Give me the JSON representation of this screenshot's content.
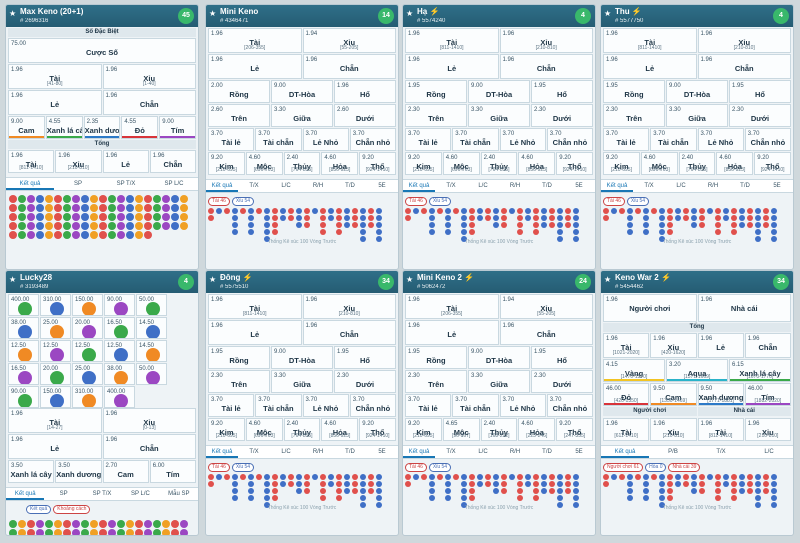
{
  "common": {
    "tabs": [
      "Kết quả",
      "T/X",
      "L/C",
      "R/H",
      "T/D",
      "5E"
    ],
    "footer": "Thống Kê xúc 100 Vòng Trước",
    "chip_tai": "Tài 46",
    "chip_xiu": "Xỉu 54"
  },
  "panels": [
    {
      "title": "Max Keno (20+1)",
      "bolt": false,
      "id": "# 2696316",
      "count": "45",
      "sodacbiet": "Số Đặc Biệt",
      "cuocso_odd": "75.00",
      "cuocso": "Cược Số",
      "rows": [
        [
          {
            "o": "1.96",
            "n": "Tài",
            "r": "[41-80]"
          },
          {
            "o": "1.96",
            "n": "Xỉu",
            "r": "[1-40]"
          }
        ],
        [
          {
            "o": "1.96",
            "n": "Lẻ",
            "r": ""
          },
          {
            "o": "1.96",
            "n": "Chẵn",
            "r": ""
          }
        ]
      ],
      "colors": [
        {
          "o": "9.00",
          "n": "Cam"
        },
        {
          "o": "4.55",
          "n": "Xanh lá cây"
        },
        {
          "o": "2.35",
          "n": "Xanh dương"
        },
        {
          "o": "4.55",
          "n": "Đỏ"
        },
        {
          "o": "9.00",
          "n": "Tím"
        }
      ],
      "tong": "Tổng",
      "tongrows": [
        {
          "o": "1.96",
          "n": "Tài",
          "r": "[811-1410]"
        },
        {
          "o": "1.96",
          "n": "Xỉu",
          "r": "[210-810]"
        },
        {
          "o": "1.96",
          "n": "Lẻ",
          "r": ""
        },
        {
          "o": "1.96",
          "n": "Chẵn",
          "r": ""
        }
      ],
      "tabs2": [
        "Kết quả",
        "SP",
        "SP T/X",
        "SP L/C"
      ]
    },
    {
      "title": "Mini Keno",
      "bolt": false,
      "id": "# 4346471",
      "count": "14",
      "rows": [
        [
          {
            "o": "1.96",
            "n": "Tài",
            "r": "[206-355]"
          },
          {
            "o": "1.94",
            "n": "Xỉu",
            "r": "[55-205]"
          }
        ],
        [
          {
            "o": "1.96",
            "n": "Lẻ",
            "r": ""
          },
          {
            "o": "1.96",
            "n": "Chẵn",
            "r": ""
          }
        ],
        [
          {
            "o": "2.00",
            "n": "Rồng",
            "r": ""
          },
          {
            "o": "9.00",
            "n": "DT-Hòa",
            "r": ""
          },
          {
            "o": "1.96",
            "n": "Hổ",
            "r": ""
          }
        ],
        [
          {
            "o": "2.60",
            "n": "Trên",
            "r": ""
          },
          {
            "o": "3.30",
            "n": "Giữa",
            "r": ""
          },
          {
            "o": "2.60",
            "n": "Dưới",
            "r": ""
          }
        ],
        [
          {
            "o": "3.70",
            "n": "Tài lẻ",
            "r": ""
          },
          {
            "o": "3.70",
            "n": "Tài chẵn",
            "r": ""
          },
          {
            "o": "3.70",
            "n": "Lẻ Nhỏ",
            "r": ""
          },
          {
            "o": "3.70",
            "n": "Chẵn nhỏ",
            "r": ""
          }
        ],
        [
          {
            "o": "9.20",
            "n": "Kim",
            "r": "[210-695]"
          },
          {
            "o": "4.60",
            "n": "Mộc",
            "r": "[696-763]"
          },
          {
            "o": "2.40",
            "n": "Thủy",
            "r": "[764-855]"
          },
          {
            "o": "4.60",
            "n": "Hỏa",
            "r": "[856-923]"
          },
          {
            "o": "9.20",
            "n": "Thổ",
            "r": "[924-1410]"
          }
        ]
      ]
    },
    {
      "title": "Hạ",
      "bolt": true,
      "id": "# 5574240",
      "count": "4",
      "rows": [
        [
          {
            "o": "1.96",
            "n": "Tài",
            "r": "[811-1410]"
          },
          {
            "o": "1.96",
            "n": "Xỉu",
            "r": "[210-810]"
          }
        ],
        [
          {
            "o": "1.96",
            "n": "Lẻ",
            "r": ""
          },
          {
            "o": "1.96",
            "n": "Chẵn",
            "r": ""
          }
        ],
        [
          {
            "o": "1.95",
            "n": "Rồng",
            "r": ""
          },
          {
            "o": "9.00",
            "n": "DT-Hòa",
            "r": ""
          },
          {
            "o": "1.95",
            "n": "Hổ",
            "r": ""
          }
        ],
        [
          {
            "o": "2.30",
            "n": "Trên",
            "r": ""
          },
          {
            "o": "3.30",
            "n": "Giữa",
            "r": ""
          },
          {
            "o": "2.30",
            "n": "Dưới",
            "r": ""
          }
        ],
        [
          {
            "o": "3.70",
            "n": "Tài lẻ",
            "r": ""
          },
          {
            "o": "3.70",
            "n": "Tài chẵn",
            "r": ""
          },
          {
            "o": "3.70",
            "n": "Lẻ Nhỏ",
            "r": ""
          },
          {
            "o": "3.70",
            "n": "Chẵn nhỏ",
            "r": ""
          }
        ],
        [
          {
            "o": "9.20",
            "n": "Kim",
            "r": "[210-695]"
          },
          {
            "o": "4.60",
            "n": "Mộc",
            "r": "[696-763]"
          },
          {
            "o": "2.40",
            "n": "Thủy",
            "r": "[764-855]"
          },
          {
            "o": "4.60",
            "n": "Hỏa",
            "r": "[856-923]"
          },
          {
            "o": "9.20",
            "n": "Thổ",
            "r": "[924-1410]"
          }
        ]
      ]
    },
    {
      "title": "Thu",
      "bolt": true,
      "id": "# 5577750",
      "count": "4",
      "rows": [
        [
          {
            "o": "1.96",
            "n": "Tài",
            "r": "[811-1410]"
          },
          {
            "o": "1.96",
            "n": "Xỉu",
            "r": "[210-810]"
          }
        ],
        [
          {
            "o": "1.96",
            "n": "Lẻ",
            "r": ""
          },
          {
            "o": "1.96",
            "n": "Chẵn",
            "r": ""
          }
        ],
        [
          {
            "o": "1.95",
            "n": "Rồng",
            "r": ""
          },
          {
            "o": "9.00",
            "n": "DT-Hòa",
            "r": ""
          },
          {
            "o": "1.95",
            "n": "Hổ",
            "r": ""
          }
        ],
        [
          {
            "o": "2.30",
            "n": "Trên",
            "r": ""
          },
          {
            "o": "3.30",
            "n": "Giữa",
            "r": ""
          },
          {
            "o": "2.30",
            "n": "Dưới",
            "r": ""
          }
        ],
        [
          {
            "o": "3.70",
            "n": "Tài lẻ",
            "r": ""
          },
          {
            "o": "3.70",
            "n": "Tài chẵn",
            "r": ""
          },
          {
            "o": "3.70",
            "n": "Lẻ Nhỏ",
            "r": ""
          },
          {
            "o": "3.70",
            "n": "Chẵn nhỏ",
            "r": ""
          }
        ],
        [
          {
            "o": "9.20",
            "n": "Kim",
            "r": "[210-695]"
          },
          {
            "o": "4.60",
            "n": "Mộc",
            "r": "[696-763]"
          },
          {
            "o": "2.40",
            "n": "Thủy",
            "r": "[764-855]"
          },
          {
            "o": "4.60",
            "n": "Hỏa",
            "r": "[856-923]"
          },
          {
            "o": "9.20",
            "n": "Thổ",
            "r": "[924-1410]"
          }
        ]
      ]
    },
    {
      "title": "Lucky28",
      "bolt": false,
      "id": "# 3193489",
      "count": "4",
      "odds": [
        "400.00",
        "310.00",
        "150.00",
        "90.00",
        "50.00",
        "38.00",
        "25.00",
        "20.00",
        "16.50",
        "14.50",
        "12.50",
        "12.50",
        "12.50",
        "12.50",
        "14.50",
        "16.50",
        "20.00",
        "25.00",
        "38.00",
        "50.00",
        "90.00",
        "150.00",
        "310.00",
        "400.00"
      ],
      "rows": [
        [
          {
            "o": "1.96",
            "n": "Tài",
            "r": "[14-27]"
          },
          {
            "o": "1.96",
            "n": "Xỉu",
            "r": "[0-13]"
          }
        ],
        [
          {
            "o": "1.96",
            "n": "Lẻ",
            "r": ""
          },
          {
            "o": "1.96",
            "n": "Chẵn",
            "r": ""
          }
        ],
        [
          {
            "o": "3.50",
            "n": "Xanh lá cây",
            "r": ""
          },
          {
            "o": "3.50",
            "n": "Xanh dương",
            "r": ""
          },
          {
            "o": "2.70",
            "n": "Cam",
            "r": ""
          },
          {
            "o": "6.00",
            "n": "Tím",
            "r": ""
          }
        ]
      ],
      "tabs2": [
        "Kết quả",
        "SP",
        "SP T/X",
        "SP L/C",
        "Mẫu SP"
      ],
      "btn1": "Kết quả",
      "btn2": "Khoảng cách"
    },
    {
      "title": "Đông",
      "bolt": true,
      "id": "# 5575510",
      "count": "34",
      "rows": [
        [
          {
            "o": "1.96",
            "n": "Tài",
            "r": "[811-1410]"
          },
          {
            "o": "1.96",
            "n": "Xỉu",
            "r": "[210-810]"
          }
        ],
        [
          {
            "o": "1.96",
            "n": "Lẻ",
            "r": ""
          },
          {
            "o": "1.96",
            "n": "Chẵn",
            "r": ""
          }
        ],
        [
          {
            "o": "1.95",
            "n": "Rồng",
            "r": ""
          },
          {
            "o": "9.00",
            "n": "DT-Hòa",
            "r": ""
          },
          {
            "o": "1.95",
            "n": "Hổ",
            "r": ""
          }
        ],
        [
          {
            "o": "2.30",
            "n": "Trên",
            "r": ""
          },
          {
            "o": "3.30",
            "n": "Giữa",
            "r": ""
          },
          {
            "o": "2.30",
            "n": "Dưới",
            "r": ""
          }
        ],
        [
          {
            "o": "3.70",
            "n": "Tài lẻ",
            "r": ""
          },
          {
            "o": "3.70",
            "n": "Tài chẵn",
            "r": ""
          },
          {
            "o": "3.70",
            "n": "Lẻ Nhỏ",
            "r": ""
          },
          {
            "o": "3.70",
            "n": "Chẵn nhỏ",
            "r": ""
          }
        ],
        [
          {
            "o": "9.20",
            "n": "Kim",
            "r": "[210-695]"
          },
          {
            "o": "4.60",
            "n": "Mộc",
            "r": "[696-763]"
          },
          {
            "o": "2.40",
            "n": "Thủy",
            "r": "[764-855]"
          },
          {
            "o": "4.60",
            "n": "Hỏa",
            "r": "[856-923]"
          },
          {
            "o": "9.20",
            "n": "Thổ",
            "r": "[924-1410]"
          }
        ]
      ]
    },
    {
      "title": "Mini Keno 2",
      "bolt": true,
      "id": "# 5062472",
      "count": "24",
      "rows": [
        [
          {
            "o": "1.96",
            "n": "Tài",
            "r": "[206-355]"
          },
          {
            "o": "1.94",
            "n": "Xỉu",
            "r": "[55-205]"
          }
        ],
        [
          {
            "o": "1.96",
            "n": "Lẻ",
            "r": ""
          },
          {
            "o": "1.96",
            "n": "Chẵn",
            "r": ""
          }
        ],
        [
          {
            "o": "1.95",
            "n": "Rồng",
            "r": ""
          },
          {
            "o": "9.00",
            "n": "DT-Hòa",
            "r": ""
          },
          {
            "o": "1.95",
            "n": "Hổ",
            "r": ""
          }
        ],
        [
          {
            "o": "2.30",
            "n": "Trên",
            "r": ""
          },
          {
            "o": "3.30",
            "n": "Giữa",
            "r": ""
          },
          {
            "o": "2.30",
            "n": "Dưới",
            "r": ""
          }
        ],
        [
          {
            "o": "3.70",
            "n": "Tài lẻ",
            "r": ""
          },
          {
            "o": "3.70",
            "n": "Tài chẵn",
            "r": ""
          },
          {
            "o": "3.70",
            "n": "Lẻ Nhỏ",
            "r": ""
          },
          {
            "o": "3.70",
            "n": "Chẵn nhỏ",
            "r": ""
          }
        ],
        [
          {
            "o": "9.20",
            "n": "Kim",
            "r": "[210-695]"
          },
          {
            "o": "4.65",
            "n": "Mộc",
            "r": "[96-167]"
          },
          {
            "o": "2.40",
            "n": "Thủy",
            "r": "[168-222]"
          },
          {
            "o": "4.60",
            "n": "Hỏa",
            "r": "[223-246]"
          },
          {
            "o": "9.20",
            "n": "Thổ",
            "r": "[247-355]"
          }
        ]
      ]
    },
    {
      "title": "Keno War 2",
      "bolt": true,
      "id": "# 5454462",
      "count": "34",
      "top": [
        {
          "o": "1.96",
          "n": "Người chơi"
        },
        {
          "o": "1.96",
          "n": "Nhà cái"
        }
      ],
      "tong": "Tổng",
      "tongrows": [
        {
          "o": "1.96",
          "n": "Tài",
          "r": "[1021-2020]"
        },
        {
          "o": "1.96",
          "n": "Xỉu",
          "r": "[420-1620]"
        },
        {
          "o": "1.96",
          "n": "Lẻ",
          "r": ""
        },
        {
          "o": "1.96",
          "n": "Chẵn",
          "r": ""
        }
      ],
      "colors1": [
        {
          "o": "4.15",
          "n": "Vàng",
          "r": "[1470-1570]"
        },
        {
          "o": "3.20",
          "n": "Aqua",
          "r": "[1571-1669]"
        },
        {
          "o": "6.15",
          "n": "Xanh lá cây",
          "r": "[1670-1770]"
        }
      ],
      "colors2": [
        {
          "o": "46.00",
          "n": "Đỏ",
          "r": "[420-1350]"
        },
        {
          "o": "9.50",
          "n": "Cam",
          "r": "[1350-1469]"
        },
        {
          "o": "9.50",
          "n": "Xanh dương",
          "r": "[1771-1881]"
        },
        {
          "o": "46.00",
          "n": "Tím",
          "r": "[1882-2020]"
        }
      ],
      "nguoichoi": "Người chơi",
      "nhacai": "Nhà cái",
      "pair": [
        {
          "o": "1.96",
          "n": "Tài",
          "r": "[611-1410]"
        },
        {
          "o": "1.96",
          "n": "Xỉu",
          "r": "[210-810]"
        },
        {
          "o": "1.96",
          "n": "Tài",
          "r": "[811-1410]"
        },
        {
          "o": "1.96",
          "n": "Xỉu",
          "r": "[210-810]"
        }
      ],
      "tabs2": [
        "Kết quả",
        "P/B",
        "T/X",
        "L/C"
      ],
      "chips": [
        "Người chơi 61",
        "Hòa 0",
        "Nhà cái 39"
      ]
    }
  ]
}
